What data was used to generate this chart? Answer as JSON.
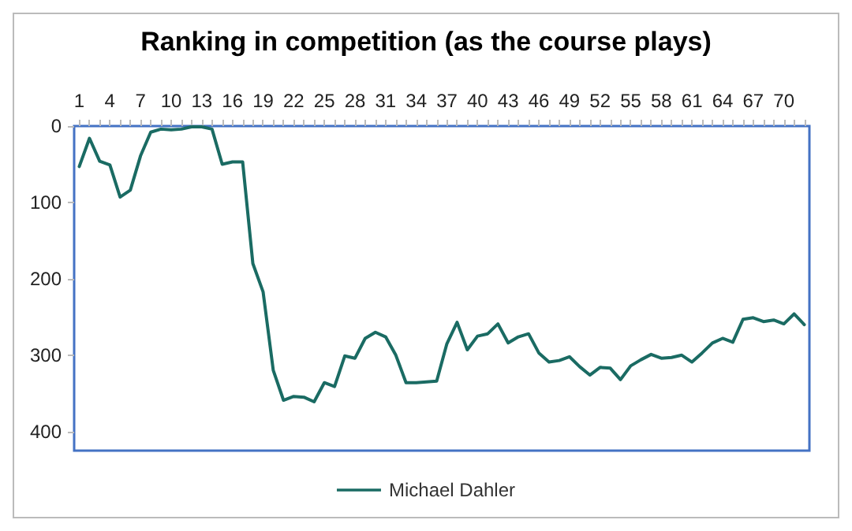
{
  "chart_data": {
    "type": "line",
    "title": "Ranking in competition (as the course plays)",
    "categories": [
      "1",
      null,
      null,
      "4",
      null,
      null,
      "7",
      null,
      null,
      "10",
      null,
      null,
      "13",
      null,
      null,
      "16",
      null,
      null,
      "19",
      null,
      null,
      "22",
      null,
      null,
      "25",
      null,
      null,
      "28",
      null,
      null,
      "31",
      null,
      null,
      "34",
      null,
      null,
      "37",
      null,
      null,
      "40",
      null,
      null,
      "43",
      null,
      null,
      "46",
      null,
      null,
      "49",
      null,
      null,
      "52",
      null,
      null,
      "55",
      null,
      null,
      "58",
      null,
      null,
      "61",
      null,
      null,
      "64",
      null,
      null,
      "67",
      null,
      null,
      "70",
      null,
      null
    ],
    "series": [
      {
        "name": "Michael Dahler",
        "color": "#1a6b63",
        "values": [
          53,
          16,
          46,
          51,
          93,
          84,
          39,
          8,
          4,
          5,
          4,
          1,
          1,
          4,
          50,
          47,
          47,
          180,
          217,
          320,
          359,
          354,
          355,
          361,
          336,
          341,
          301,
          304,
          278,
          270,
          276,
          300,
          336,
          336,
          335,
          334,
          285,
          257,
          293,
          275,
          272,
          259,
          284,
          276,
          272,
          297,
          309,
          307,
          302,
          315,
          326,
          316,
          317,
          332,
          314,
          306,
          299,
          304,
          303,
          300,
          309,
          297,
          284,
          278,
          283,
          253,
          251,
          256,
          254,
          259,
          246,
          260
        ]
      }
    ],
    "ylim": [
      425,
      0
    ],
    "yticks": [
      0,
      100,
      200,
      300,
      400
    ],
    "grid": false,
    "legend": "bottom",
    "marker": "none",
    "line_style": "solid"
  }
}
